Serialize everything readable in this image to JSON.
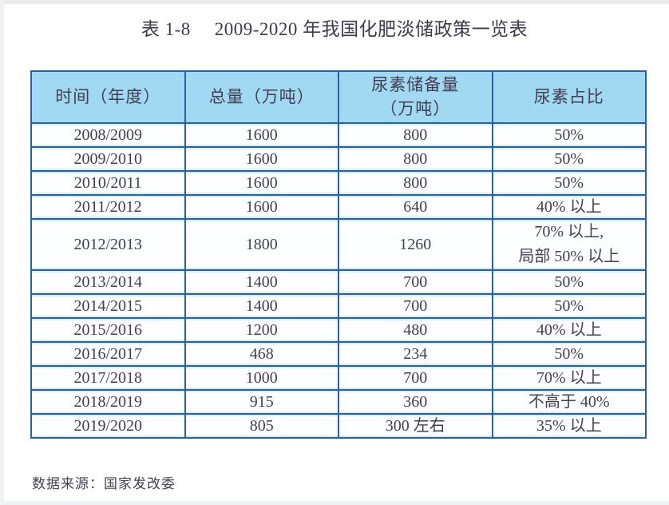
{
  "title": {
    "label": "表 1-8",
    "text": "2009-2020 年我国化肥淡储政策一览表"
  },
  "table": {
    "columns": [
      "时间（年度）",
      "总量（万吨）",
      "尿素储备量\n（万吨）",
      "尿素占比"
    ],
    "rows": [
      {
        "cells": [
          "2008/2009",
          "1600",
          "800",
          "50%"
        ]
      },
      {
        "cells": [
          "2009/2010",
          "1600",
          "800",
          "50%"
        ]
      },
      {
        "cells": [
          "2010/2011",
          "1600",
          "800",
          "50%"
        ]
      },
      {
        "cells": [
          "2011/2012",
          "1600",
          "640",
          "40% 以上"
        ]
      },
      {
        "cells": [
          "2012/2013",
          "1800",
          "1260",
          "70% 以上,\n局部 50% 以上"
        ],
        "tall": true
      },
      {
        "cells": [
          "2013/2014",
          "1400",
          "700",
          "50%"
        ]
      },
      {
        "cells": [
          "2014/2015",
          "1400",
          "700",
          "50%"
        ]
      },
      {
        "cells": [
          "2015/2016",
          "1200",
          "480",
          "40% 以上"
        ]
      },
      {
        "cells": [
          "2016/2017",
          "468",
          "234",
          "50%"
        ]
      },
      {
        "cells": [
          "2017/2018",
          "1000",
          "700",
          "70% 以上"
        ]
      },
      {
        "cells": [
          "2018/2019",
          "915",
          "360",
          "不高于 40%"
        ]
      },
      {
        "cells": [
          "2019/2020",
          "805",
          "300 左右",
          "35% 以上"
        ]
      }
    ]
  },
  "footer": {
    "source": "数据来源：国家发改委"
  },
  "colors": {
    "header_bg": "#a2d9f2",
    "border_blue": "#2b5fa6",
    "text": "#433d52"
  }
}
